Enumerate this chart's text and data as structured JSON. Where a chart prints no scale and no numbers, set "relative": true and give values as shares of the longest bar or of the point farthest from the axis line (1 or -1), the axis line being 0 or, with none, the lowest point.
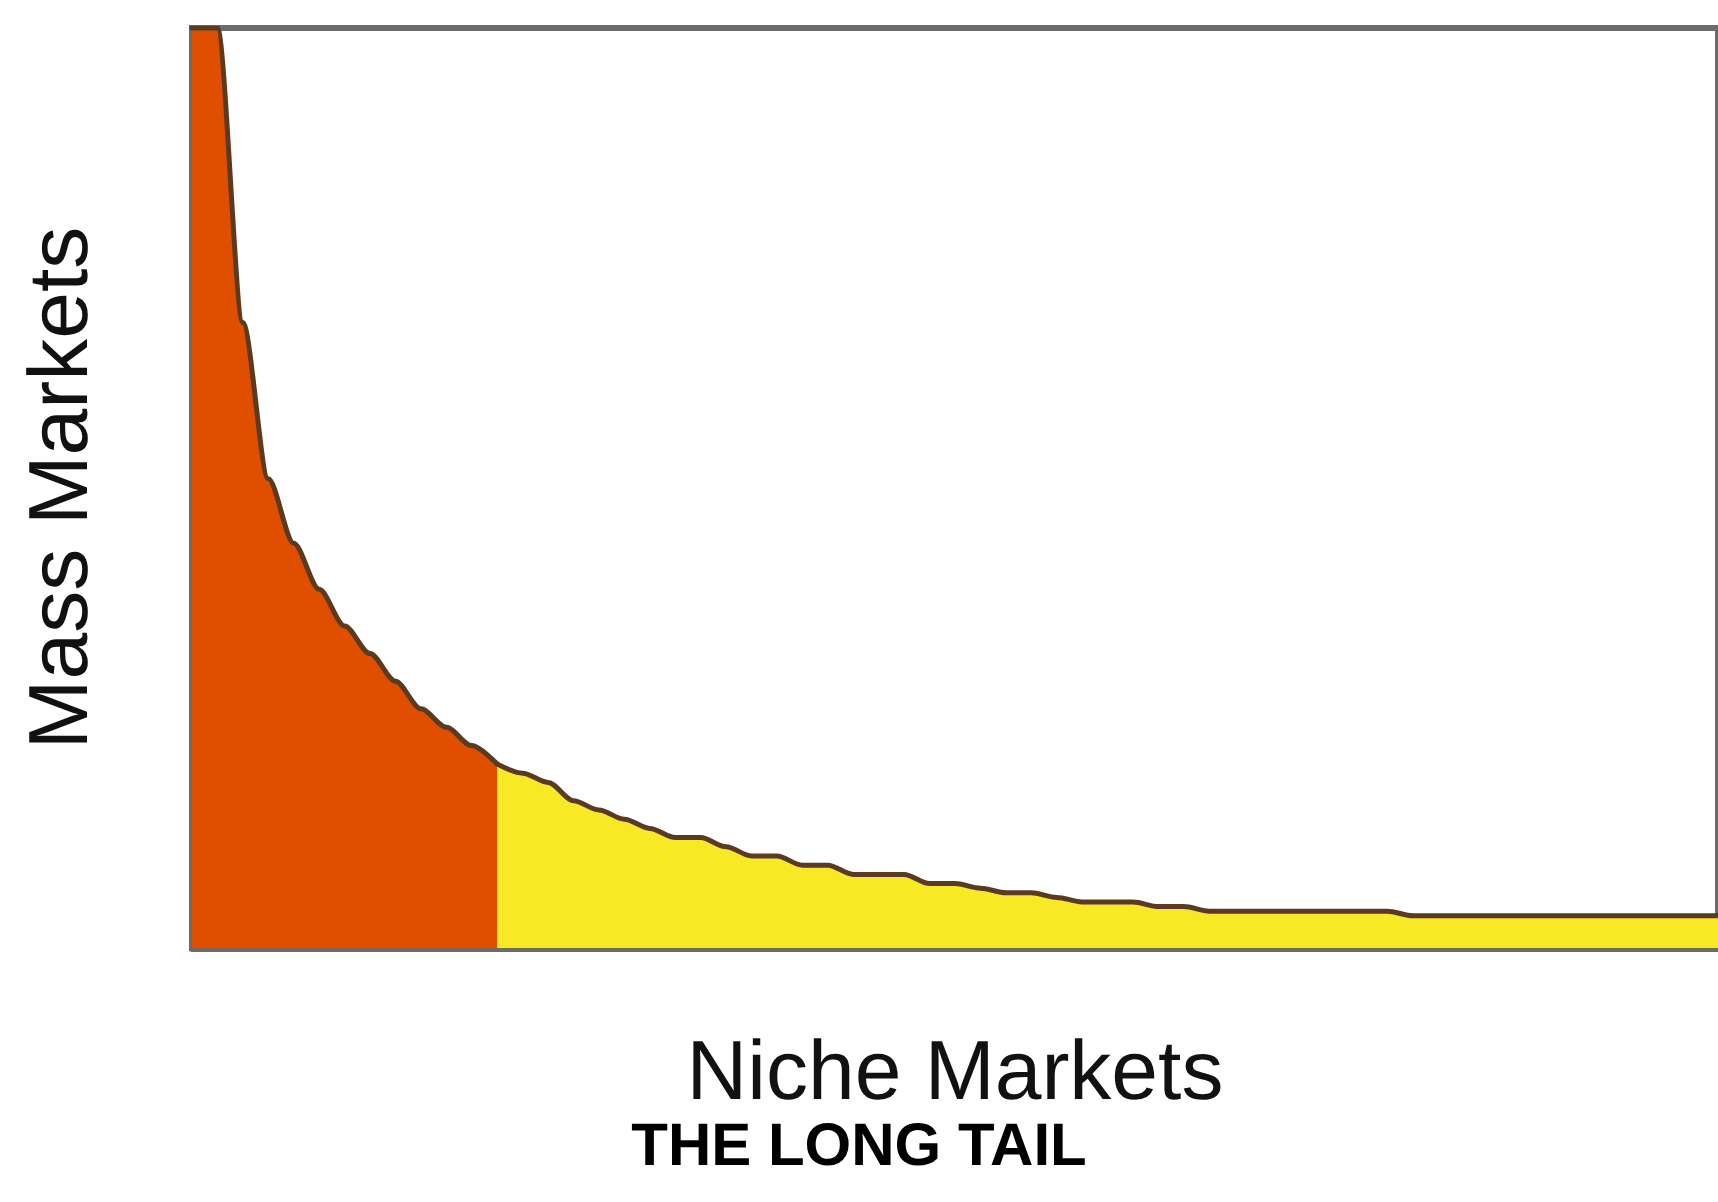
{
  "chart_data": {
    "type": "area",
    "title": "THE LONG TAIL",
    "xlabel": "Niche Markets",
    "ylabel": "Mass Markets",
    "relative": true,
    "categories": [
      null,
      null,
      null,
      null,
      null,
      null,
      null,
      null,
      null,
      null,
      null,
      null,
      null,
      null,
      null,
      null,
      null,
      null,
      null,
      null,
      null,
      null,
      null,
      null,
      null,
      null,
      null,
      null,
      null,
      null,
      null,
      null,
      null,
      null,
      null,
      null,
      null,
      null,
      null,
      null,
      null,
      null,
      null,
      null,
      null,
      null,
      null,
      null,
      null,
      null,
      null,
      null,
      null,
      null,
      null,
      null,
      null,
      null,
      null,
      null,
      null
    ],
    "series": [
      {
        "color": "#e04e00",
        "values": [
          1.0,
          1.0,
          0.68,
          0.51,
          0.44,
          0.39,
          0.35,
          0.32,
          0.29,
          0.26,
          0.24,
          0.22,
          0.2,
          null,
          null,
          null,
          null,
          null,
          null,
          null,
          null,
          null,
          null,
          null,
          null,
          null,
          null,
          null,
          null,
          null,
          null,
          null,
          null,
          null,
          null,
          null,
          null,
          null,
          null,
          null,
          null,
          null,
          null,
          null,
          null,
          null,
          null,
          null,
          null,
          null,
          null,
          null,
          null,
          null,
          null,
          null,
          null,
          null,
          null,
          null,
          null
        ]
      },
      {
        "color": "#f7e923",
        "values": [
          null,
          null,
          null,
          null,
          null,
          null,
          null,
          null,
          null,
          null,
          null,
          null,
          0.2,
          0.19,
          0.18,
          0.16,
          0.15,
          0.14,
          0.13,
          0.12,
          0.12,
          0.11,
          0.1,
          0.1,
          0.09,
          0.09,
          0.08,
          0.08,
          0.08,
          0.07,
          0.07,
          0.065,
          0.06,
          0.06,
          0.055,
          0.05,
          0.05,
          0.05,
          0.045,
          0.045,
          0.04,
          0.04,
          0.04,
          0.04,
          0.04,
          0.04,
          0.04,
          0.04,
          0.035,
          0.035,
          0.035,
          0.035,
          0.035,
          0.035,
          0.035,
          0.035,
          0.035,
          0.035,
          0.035,
          0.035,
          0.035
        ]
      }
    ]
  }
}
